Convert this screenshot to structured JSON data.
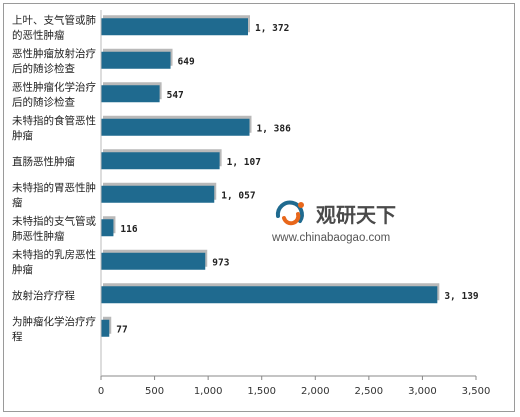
{
  "chart_data": {
    "type": "bar",
    "orientation": "horizontal",
    "categories": [
      [
        "上叶、支气管或肺",
        "的恶性肿瘤"
      ],
      [
        "恶性肿瘤放射治疗",
        "后的随诊检查"
      ],
      [
        "恶性肿瘤化学治疗",
        "后的随诊检查"
      ],
      [
        "未特指的食管恶性",
        "肿瘤"
      ],
      [
        "直肠恶性肿瘤"
      ],
      [
        "未特指的胃恶性肿",
        "瘤"
      ],
      [
        "未特指的支气管或",
        "肺恶性肿瘤"
      ],
      [
        "未特指的乳房恶性",
        "肿瘤"
      ],
      [
        "放射治疗疗程"
      ],
      [
        "为肿瘤化学治疗疗",
        "程"
      ]
    ],
    "values": [
      1372,
      649,
      547,
      1386,
      1107,
      1057,
      116,
      973,
      3139,
      77
    ],
    "value_labels": [
      "1, 372",
      "649",
      "547",
      "1, 386",
      "1, 107",
      "1, 057",
      "116",
      "973",
      "3, 139",
      "77"
    ],
    "xlim": [
      0,
      3500
    ],
    "x_ticks": [
      0,
      500,
      1000,
      1500,
      2000,
      2500,
      3000,
      3500
    ],
    "x_tick_labels": [
      "0",
      "500",
      "1,000",
      "1,500",
      "2,000",
      "2,500",
      "3,000",
      "3,500"
    ],
    "bar_color": "#1f6a8f",
    "shadow_color": "#b9b9b9",
    "title": "",
    "xlabel": "",
    "ylabel": "",
    "grid": false,
    "legend": "none"
  },
  "watermark": {
    "name": "观研天下",
    "url": "www.chinabaogao.com",
    "logo_colors": [
      "#1f6a8f",
      "#e8671b"
    ]
  }
}
